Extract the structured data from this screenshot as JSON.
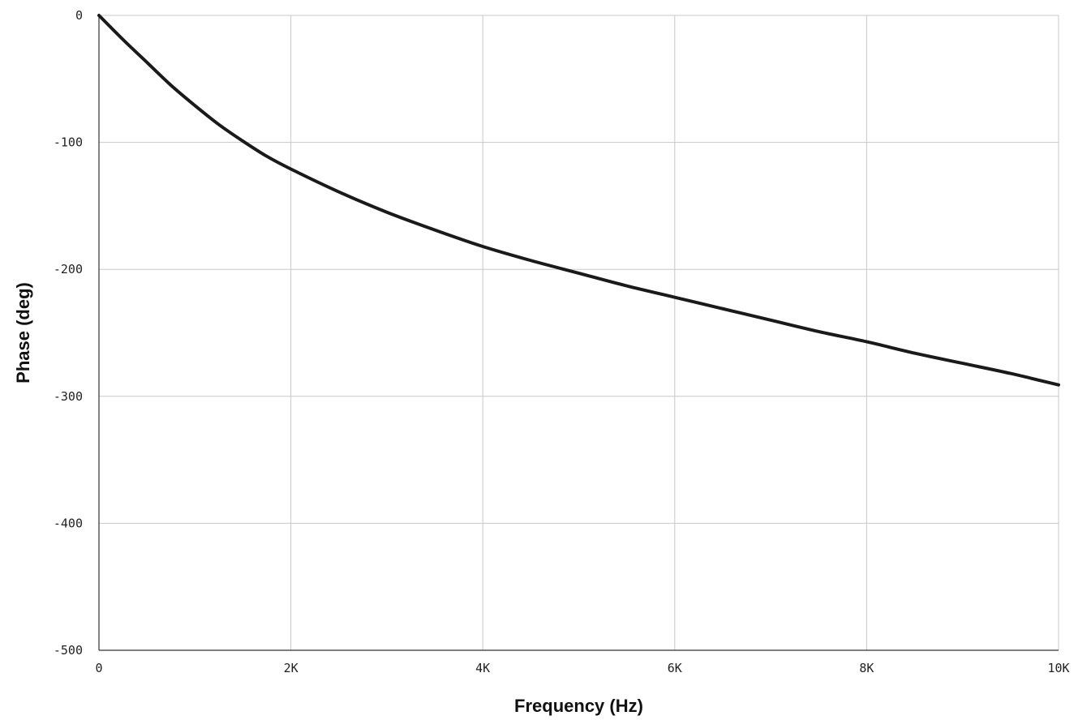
{
  "chart_data": {
    "type": "line",
    "title": "",
    "xlabel": "Frequency (Hz)",
    "ylabel": "Phase (deg)",
    "xlim": [
      0,
      10000
    ],
    "ylim": [
      -500,
      0
    ],
    "x_ticks": [
      0,
      2000,
      4000,
      6000,
      8000,
      10000
    ],
    "x_tick_labels": [
      "0",
      "2K",
      "4K",
      "6K",
      "8K",
      "10K"
    ],
    "y_ticks": [
      0,
      -100,
      -200,
      -300,
      -400,
      -500
    ],
    "y_tick_labels": [
      "0",
      "-100",
      "-200",
      "-300",
      "-400",
      "-500"
    ],
    "grid": true,
    "legend": "none",
    "series": [
      {
        "color": "#1a1a1a",
        "x": [
          0,
          250,
          500,
          750,
          1000,
          1250,
          1500,
          1750,
          2000,
          2500,
          3000,
          3500,
          4000,
          4500,
          5000,
          5500,
          6000,
          6500,
          7000,
          7500,
          8000,
          8500,
          9000,
          9500,
          10000
        ],
        "y": [
          0,
          -19,
          -37,
          -55,
          -71,
          -86,
          -99,
          -111,
          -121,
          -139,
          -155,
          -169,
          -182,
          -193,
          -203,
          -213,
          -222,
          -231,
          -240,
          -249,
          -257,
          -266,
          -274,
          -282,
          -291
        ]
      }
    ]
  }
}
